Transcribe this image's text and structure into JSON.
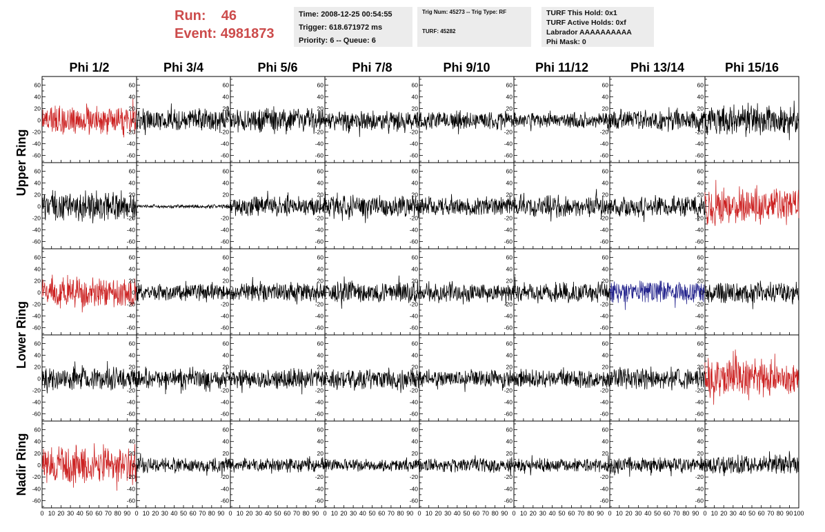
{
  "header": {
    "run_label": "Run:",
    "run_value": "46",
    "event_label": "Event:",
    "event_value": "4981873",
    "time": "Time: 2008-12-25 00:54:55",
    "trigger": "Trigger: 618.671972 ms",
    "priority": "Priority: 6 -- Queue: 6",
    "trig_num": "Trig Num: 45273 -- Trig Type: RF",
    "turf": "TURF: 45282",
    "turf_this_hold": "TURF This Hold: 0x1",
    "turf_active_holds": "TURF Active Holds: 0xf",
    "labrador": "Labrador AAAAAAAAAA",
    "phi_mask": "Phi Mask: 0"
  },
  "colors": {
    "header_text": "#cc4b4b",
    "info_box": "#ececec",
    "trace_default": "#000000",
    "trace_red": "#cc2222",
    "trace_blue": "#22228c"
  },
  "chart_data": {
    "type": "line",
    "columns": [
      "Phi 1/2",
      "Phi 3/4",
      "Phi 5/6",
      "Phi 7/8",
      "Phi 9/10",
      "Phi 11/12",
      "Phi 13/14",
      "Phi 15/16"
    ],
    "row_groups": [
      {
        "label": "Upper Ring",
        "rows": [
          0,
          1
        ]
      },
      {
        "label": "Lower Ring",
        "rows": [
          2,
          3
        ]
      },
      {
        "label": "Nadir Ring",
        "rows": [
          4
        ]
      }
    ],
    "xlim": [
      0,
      100
    ],
    "ylim": [
      -70,
      70
    ],
    "yticks": [
      -60,
      -40,
      -20,
      0,
      20,
      40,
      60
    ],
    "xtick_labels": [
      "0",
      "10",
      "20",
      "30",
      "40",
      "50",
      "60",
      "70",
      "80",
      "90",
      "100"
    ],
    "panels": [
      {
        "row": 0,
        "col": 0,
        "color": "red",
        "amplitude": 22,
        "mean": 0,
        "shape": "noise"
      },
      {
        "row": 0,
        "col": 1,
        "color": "black",
        "amplitude": 18,
        "mean": 0,
        "shape": "noise"
      },
      {
        "row": 0,
        "col": 2,
        "color": "black",
        "amplitude": 18,
        "mean": 0,
        "shape": "noise"
      },
      {
        "row": 0,
        "col": 3,
        "color": "black",
        "amplitude": 16,
        "mean": -2,
        "shape": "noise"
      },
      {
        "row": 0,
        "col": 4,
        "color": "black",
        "amplitude": 15,
        "mean": 0,
        "shape": "noise"
      },
      {
        "row": 0,
        "col": 5,
        "color": "black",
        "amplitude": 13,
        "mean": 0,
        "shape": "noise"
      },
      {
        "row": 0,
        "col": 6,
        "color": "black",
        "amplitude": 17,
        "mean": 0,
        "shape": "noise"
      },
      {
        "row": 0,
        "col": 7,
        "color": "black",
        "amplitude": 25,
        "mean": 0,
        "shape": "noise"
      },
      {
        "row": 1,
        "col": 0,
        "color": "black",
        "amplitude": 24,
        "mean": 0,
        "shape": "noise"
      },
      {
        "row": 1,
        "col": 1,
        "color": "black",
        "amplitude": 3,
        "mean": 0,
        "shape": "noise"
      },
      {
        "row": 1,
        "col": 2,
        "color": "black",
        "amplitude": 16,
        "mean": 0,
        "shape": "noise"
      },
      {
        "row": 1,
        "col": 3,
        "color": "black",
        "amplitude": 18,
        "mean": 0,
        "shape": "noise"
      },
      {
        "row": 1,
        "col": 4,
        "color": "black",
        "amplitude": 15,
        "mean": 0,
        "shape": "noise"
      },
      {
        "row": 1,
        "col": 5,
        "color": "black",
        "amplitude": 18,
        "mean": 0,
        "shape": "noise"
      },
      {
        "row": 1,
        "col": 6,
        "color": "black",
        "amplitude": 16,
        "mean": 0,
        "shape": "noise"
      },
      {
        "row": 1,
        "col": 7,
        "color": "red",
        "amplitude": 28,
        "mean": 0,
        "shape": "noise"
      },
      {
        "row": 2,
        "col": 0,
        "color": "red",
        "amplitude": 24,
        "mean": 0,
        "shape": "noise"
      },
      {
        "row": 2,
        "col": 1,
        "color": "black",
        "amplitude": 13,
        "mean": 0,
        "shape": "noise"
      },
      {
        "row": 2,
        "col": 2,
        "color": "black",
        "amplitude": 16,
        "mean": 0,
        "shape": "noise"
      },
      {
        "row": 2,
        "col": 3,
        "color": "black",
        "amplitude": 18,
        "mean": 0,
        "shape": "noise"
      },
      {
        "row": 2,
        "col": 4,
        "color": "black",
        "amplitude": 14,
        "mean": 0,
        "shape": "noise"
      },
      {
        "row": 2,
        "col": 5,
        "color": "black",
        "amplitude": 16,
        "mean": 0,
        "shape": "noise"
      },
      {
        "row": 2,
        "col": 6,
        "color": "blue",
        "amplitude": 18,
        "mean": 0,
        "shape": "noise"
      },
      {
        "row": 2,
        "col": 7,
        "color": "black",
        "amplitude": 17,
        "mean": 0,
        "shape": "noise"
      },
      {
        "row": 3,
        "col": 0,
        "color": "black",
        "amplitude": 18,
        "mean": 0,
        "shape": "noise"
      },
      {
        "row": 3,
        "col": 1,
        "color": "black",
        "amplitude": 16,
        "mean": 0,
        "shape": "noise"
      },
      {
        "row": 3,
        "col": 2,
        "color": "black",
        "amplitude": 16,
        "mean": 0,
        "shape": "noise"
      },
      {
        "row": 3,
        "col": 3,
        "color": "black",
        "amplitude": 17,
        "mean": 0,
        "shape": "noise"
      },
      {
        "row": 3,
        "col": 4,
        "color": "black",
        "amplitude": 14,
        "mean": 0,
        "shape": "noise"
      },
      {
        "row": 3,
        "col": 5,
        "color": "black",
        "amplitude": 15,
        "mean": 0,
        "shape": "noise"
      },
      {
        "row": 3,
        "col": 6,
        "color": "black",
        "amplitude": 18,
        "mean": 0,
        "shape": "noise"
      },
      {
        "row": 3,
        "col": 7,
        "color": "red",
        "amplitude": 30,
        "mean": 0,
        "shape": "noise"
      },
      {
        "row": 4,
        "col": 0,
        "color": "red",
        "amplitude": 30,
        "mean": 0,
        "shape": "noise"
      },
      {
        "row": 4,
        "col": 1,
        "color": "black",
        "amplitude": 12,
        "mean": 0,
        "shape": "noise"
      },
      {
        "row": 4,
        "col": 2,
        "color": "black",
        "amplitude": 11,
        "mean": 0,
        "shape": "noise"
      },
      {
        "row": 4,
        "col": 3,
        "color": "black",
        "amplitude": 10,
        "mean": 0,
        "shape": "noise"
      },
      {
        "row": 4,
        "col": 4,
        "color": "black",
        "amplitude": 12,
        "mean": 0,
        "shape": "noise"
      },
      {
        "row": 4,
        "col": 5,
        "color": "black",
        "amplitude": 11,
        "mean": 0,
        "shape": "noise"
      },
      {
        "row": 4,
        "col": 6,
        "color": "black",
        "amplitude": 13,
        "mean": 0,
        "shape": "noise"
      },
      {
        "row": 4,
        "col": 7,
        "color": "black",
        "amplitude": 16,
        "mean": 0,
        "shape": "noise"
      }
    ],
    "samples": 260
  }
}
